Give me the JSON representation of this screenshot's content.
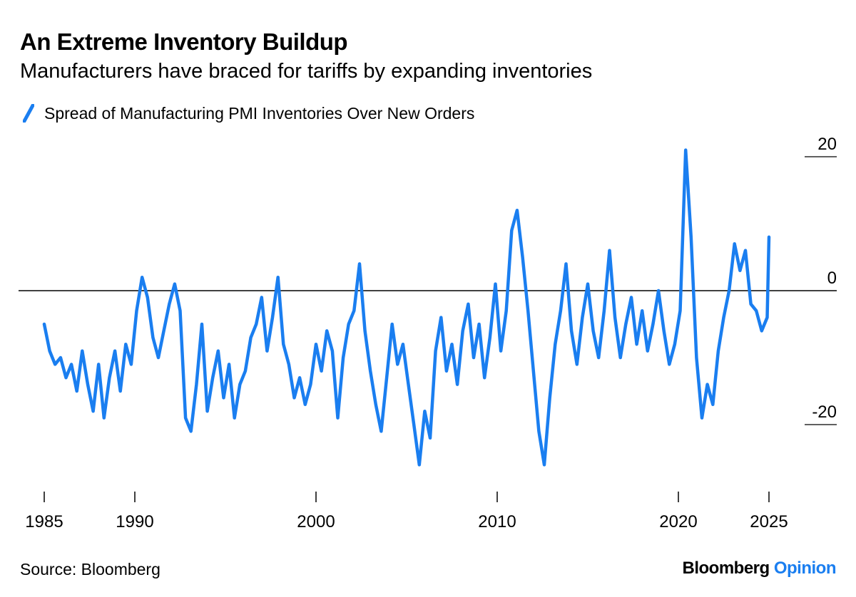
{
  "header": {
    "title": "An Extreme Inventory Buildup",
    "subtitle": "Manufacturers have braced for tariffs by expanding inventories"
  },
  "footer": {
    "source": "Source: Bloomberg",
    "brand_main": "Bloomberg",
    "brand_accent": "Opinion"
  },
  "colors": {
    "series": "#1a7ef0",
    "zero_line": "#000000",
    "axis": "#000000"
  },
  "chart_data": {
    "type": "line",
    "title": "An Extreme Inventory Buildup",
    "subtitle": "Manufacturers have braced for tariffs by expanding inventories",
    "xlabel": "",
    "ylabel": "",
    "xlim": [
      1985,
      2025
    ],
    "ylim": [
      -29,
      24
    ],
    "y_ticks": [
      20,
      0,
      -20
    ],
    "x_ticks": [
      1985,
      1990,
      2000,
      2010,
      2020,
      2025
    ],
    "zero_line": true,
    "grid": false,
    "legend": "top-left",
    "series": [
      {
        "name": "Spread of Manufacturing PMI Inventories Over New Orders",
        "points": [
          [
            1985.0,
            -5
          ],
          [
            1985.3,
            -9
          ],
          [
            1985.6,
            -11
          ],
          [
            1985.9,
            -10
          ],
          [
            1986.2,
            -13
          ],
          [
            1986.5,
            -11
          ],
          [
            1986.8,
            -15
          ],
          [
            1987.1,
            -9
          ],
          [
            1987.4,
            -14
          ],
          [
            1987.7,
            -18
          ],
          [
            1988.0,
            -11
          ],
          [
            1988.3,
            -19
          ],
          [
            1988.6,
            -13
          ],
          [
            1988.9,
            -9
          ],
          [
            1989.2,
            -15
          ],
          [
            1989.5,
            -8
          ],
          [
            1989.8,
            -11
          ],
          [
            1990.1,
            -3
          ],
          [
            1990.4,
            2
          ],
          [
            1990.7,
            -1
          ],
          [
            1991.0,
            -7
          ],
          [
            1991.3,
            -10
          ],
          [
            1991.6,
            -6
          ],
          [
            1991.9,
            -2
          ],
          [
            1992.2,
            1
          ],
          [
            1992.5,
            -3
          ],
          [
            1992.8,
            -19
          ],
          [
            1993.1,
            -21
          ],
          [
            1993.4,
            -14
          ],
          [
            1993.7,
            -5
          ],
          [
            1994.0,
            -18
          ],
          [
            1994.3,
            -13
          ],
          [
            1994.6,
            -9
          ],
          [
            1994.9,
            -16
          ],
          [
            1995.2,
            -11
          ],
          [
            1995.5,
            -19
          ],
          [
            1995.8,
            -14
          ],
          [
            1996.1,
            -12
          ],
          [
            1996.4,
            -7
          ],
          [
            1996.7,
            -5
          ],
          [
            1997.0,
            -1
          ],
          [
            1997.3,
            -9
          ],
          [
            1997.6,
            -4
          ],
          [
            1997.9,
            2
          ],
          [
            1998.2,
            -8
          ],
          [
            1998.5,
            -11
          ],
          [
            1998.8,
            -16
          ],
          [
            1999.1,
            -13
          ],
          [
            1999.4,
            -17
          ],
          [
            1999.7,
            -14
          ],
          [
            2000.0,
            -8
          ],
          [
            2000.3,
            -12
          ],
          [
            2000.6,
            -6
          ],
          [
            2000.9,
            -9
          ],
          [
            2001.2,
            -19
          ],
          [
            2001.5,
            -10
          ],
          [
            2001.8,
            -5
          ],
          [
            2002.1,
            -3
          ],
          [
            2002.4,
            4
          ],
          [
            2002.7,
            -6
          ],
          [
            2003.0,
            -12
          ],
          [
            2003.3,
            -17
          ],
          [
            2003.6,
            -21
          ],
          [
            2003.9,
            -13
          ],
          [
            2004.2,
            -5
          ],
          [
            2004.5,
            -11
          ],
          [
            2004.8,
            -8
          ],
          [
            2005.1,
            -14
          ],
          [
            2005.4,
            -20
          ],
          [
            2005.7,
            -26
          ],
          [
            2006.0,
            -18
          ],
          [
            2006.3,
            -22
          ],
          [
            2006.6,
            -9
          ],
          [
            2006.9,
            -4
          ],
          [
            2007.2,
            -12
          ],
          [
            2007.5,
            -8
          ],
          [
            2007.8,
            -14
          ],
          [
            2008.1,
            -6
          ],
          [
            2008.4,
            -2
          ],
          [
            2008.7,
            -10
          ],
          [
            2009.0,
            -5
          ],
          [
            2009.3,
            -13
          ],
          [
            2009.6,
            -7
          ],
          [
            2009.9,
            1
          ],
          [
            2010.2,
            -9
          ],
          [
            2010.5,
            -3
          ],
          [
            2010.8,
            9
          ],
          [
            2011.1,
            12
          ],
          [
            2011.4,
            5
          ],
          [
            2011.7,
            -3
          ],
          [
            2012.0,
            -12
          ],
          [
            2012.3,
            -21
          ],
          [
            2012.6,
            -26
          ],
          [
            2012.9,
            -16
          ],
          [
            2013.2,
            -8
          ],
          [
            2013.5,
            -3
          ],
          [
            2013.8,
            4
          ],
          [
            2014.1,
            -6
          ],
          [
            2014.4,
            -11
          ],
          [
            2014.7,
            -4
          ],
          [
            2015.0,
            1
          ],
          [
            2015.3,
            -6
          ],
          [
            2015.6,
            -10
          ],
          [
            2015.9,
            -3
          ],
          [
            2016.2,
            6
          ],
          [
            2016.5,
            -4
          ],
          [
            2016.8,
            -10
          ],
          [
            2017.1,
            -5
          ],
          [
            2017.4,
            -1
          ],
          [
            2017.7,
            -8
          ],
          [
            2018.0,
            -3
          ],
          [
            2018.3,
            -9
          ],
          [
            2018.6,
            -5
          ],
          [
            2018.9,
            0
          ],
          [
            2019.2,
            -6
          ],
          [
            2019.5,
            -11
          ],
          [
            2019.8,
            -8
          ],
          [
            2020.1,
            -3
          ],
          [
            2020.4,
            21
          ],
          [
            2020.7,
            8
          ],
          [
            2021.0,
            -10
          ],
          [
            2021.3,
            -19
          ],
          [
            2021.6,
            -14
          ],
          [
            2021.9,
            -17
          ],
          [
            2022.2,
            -9
          ],
          [
            2022.5,
            -4
          ],
          [
            2022.8,
            0
          ],
          [
            2023.1,
            7
          ],
          [
            2023.4,
            3
          ],
          [
            2023.7,
            6
          ],
          [
            2024.0,
            -2
          ],
          [
            2024.3,
            -3
          ],
          [
            2024.6,
            -6
          ],
          [
            2024.9,
            -4
          ],
          [
            2025.0,
            8
          ]
        ]
      }
    ]
  }
}
